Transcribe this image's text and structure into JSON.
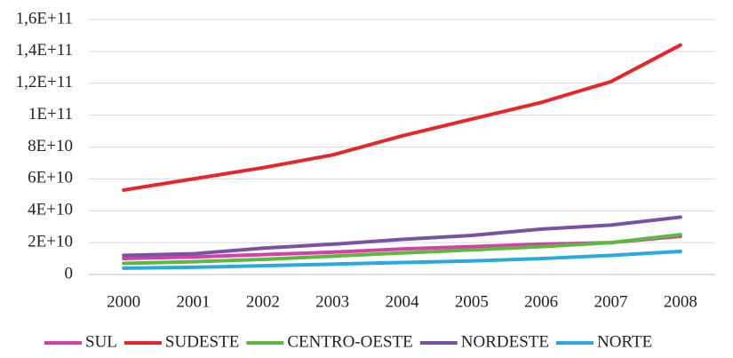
{
  "chart_data": {
    "type": "line",
    "categories": [
      "2000",
      "2001",
      "2002",
      "2003",
      "2004",
      "2005",
      "2006",
      "2007",
      "2008"
    ],
    "series": [
      {
        "name": "SUL",
        "color": "#d63fa8",
        "values": [
          10000000000,
          11000000000,
          12500000000,
          14000000000,
          16000000000,
          17500000000,
          19000000000,
          20000000000,
          24000000000
        ]
      },
      {
        "name": "SUDESTE",
        "color": "#e8262a",
        "values": [
          53000000000,
          60000000000,
          67000000000,
          75000000000,
          87000000000,
          97500000000,
          108000000000,
          121000000000,
          144000000000
        ]
      },
      {
        "name": "CENTRO-OESTE",
        "color": "#5cb93e",
        "values": [
          7000000000,
          8000000000,
          9500000000,
          11500000000,
          13500000000,
          15500000000,
          17500000000,
          20000000000,
          25000000000
        ]
      },
      {
        "name": "NORDESTE",
        "color": "#7b52a3",
        "values": [
          12000000000,
          13000000000,
          16500000000,
          19000000000,
          22000000000,
          24500000000,
          28500000000,
          31000000000,
          36000000000
        ]
      },
      {
        "name": "NORTE",
        "color": "#2aa9e0",
        "values": [
          4000000000,
          4500000000,
          5500000000,
          6500000000,
          7500000000,
          8500000000,
          10000000000,
          12000000000,
          14500000000
        ]
      }
    ],
    "ylim": [
      0,
      160000000000
    ],
    "yticks": [
      0,
      {
        "value": 20000000000,
        "label": "2E+10"
      },
      {
        "value": 40000000000,
        "label": "4E+10"
      },
      {
        "value": 60000000000,
        "label": "6E+10"
      },
      {
        "value": 80000000000,
        "label": "8E+10"
      },
      {
        "value": 100000000000,
        "label": "1E+11"
      },
      {
        "value": 120000000000,
        "label": "1,2E+11"
      },
      {
        "value": 140000000000,
        "label": "1,4E+11"
      },
      {
        "value": 160000000000,
        "label": "1,6E+11"
      }
    ],
    "grid": true,
    "legend": "bottom"
  }
}
